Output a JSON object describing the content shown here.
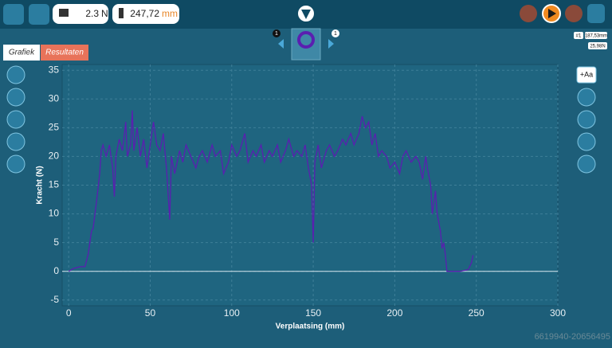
{
  "toolbar": {
    "force_value": "2.3",
    "force_unit": "N",
    "distance_value": "247,72",
    "distance_unit": "mm"
  },
  "tabs": [
    "Grafiek",
    "Resultaten"
  ],
  "navigator": {
    "left_index": "1",
    "right_index": "1"
  },
  "marker": {
    "badge": "#1",
    "position": "187,53mm",
    "force": "25,98N"
  },
  "tool_label": "+Aa",
  "watermark": "6619940-20656495",
  "chart_data": {
    "type": "line",
    "x_label": "Verplaatsing (mm)",
    "y_label": "Kracht (N)",
    "xlim": [
      -4,
      300
    ],
    "ylim": [
      -6,
      36
    ],
    "xticks": [
      0,
      50,
      100,
      150,
      200,
      250,
      300
    ],
    "yticks": [
      -5,
      0,
      5,
      10,
      15,
      20,
      25,
      30,
      35
    ],
    "grid": true,
    "x": [
      0,
      3,
      7,
      10,
      12,
      14,
      15,
      17,
      19,
      20,
      21,
      23,
      25,
      27,
      28,
      29,
      31,
      33,
      35,
      36,
      38,
      39,
      40,
      42,
      44,
      46,
      48,
      50,
      52,
      54,
      56,
      58,
      60,
      62,
      63,
      65,
      68,
      70,
      72,
      75,
      78,
      80,
      82,
      85,
      88,
      90,
      93,
      95,
      98,
      100,
      103,
      105,
      108,
      110,
      113,
      115,
      118,
      120,
      123,
      125,
      128,
      130,
      133,
      135,
      138,
      140,
      143,
      145,
      147,
      149,
      150,
      151,
      153,
      155,
      158,
      160,
      163,
      165,
      168,
      170,
      173,
      175,
      178,
      180,
      182,
      184,
      186,
      188,
      190,
      192,
      195,
      197,
      200,
      203,
      205,
      207,
      210,
      213,
      215,
      217,
      219,
      220,
      222,
      223,
      225,
      226,
      228,
      229,
      230,
      231,
      232,
      235,
      240,
      245,
      247,
      248
    ],
    "series": [
      {
        "name": "Kracht",
        "color": "#5a1fb0",
        "values": [
          0,
          0.5,
          0.8,
          0.8,
          3,
          7,
          7.5,
          12,
          17,
          21,
          22,
          20,
          22,
          18,
          13,
          20,
          23,
          21,
          26,
          20,
          22,
          28,
          21,
          25,
          20,
          23,
          18,
          22,
          26,
          22,
          21,
          24,
          18,
          9,
          20,
          17,
          21,
          19,
          22,
          20,
          18,
          20,
          21,
          19,
          22,
          20,
          21,
          17,
          19,
          22,
          20,
          21,
          24,
          19,
          21,
          20,
          22,
          19,
          21,
          20,
          22,
          19,
          21,
          23,
          20,
          21,
          20,
          22,
          18,
          15,
          5,
          19,
          22,
          18,
          21,
          22,
          20,
          21,
          23,
          22,
          24,
          22,
          24,
          27,
          25,
          26,
          22,
          24,
          20,
          21,
          20,
          18,
          19,
          17,
          20,
          21,
          19,
          20,
          19,
          16,
          20,
          18,
          15,
          10,
          14,
          10,
          7,
          4,
          5,
          3,
          0,
          0,
          0,
          0.3,
          1.5,
          2.8
        ]
      }
    ]
  }
}
